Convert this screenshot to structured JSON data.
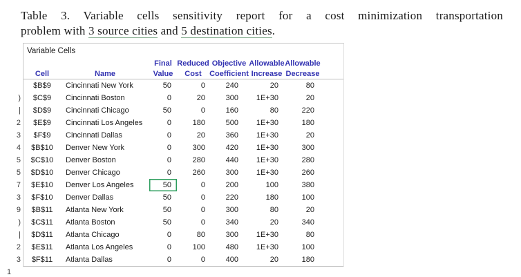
{
  "caption": {
    "line1": "Table 3. Variable cells sensitivity report for a cost minimization transportation",
    "line2": {
      "pre": "problem with ",
      "underlined1": "3 source cities",
      "mid": " and ",
      "underlined2": "5 destination cities",
      "end": "."
    }
  },
  "spreadsheet": {
    "section_label": "Variable Cells",
    "headers": {
      "line1": [
        "",
        "",
        "Final",
        "Reduced",
        "Objective",
        "Allowable",
        "Allowable"
      ],
      "line2": [
        "Cell",
        "Name",
        "Value",
        "Cost",
        "Coefficient",
        "Increase",
        "Decrease"
      ]
    },
    "rows": [
      {
        "cell": "$B$9",
        "name": "Cincinnati New York",
        "final_value": "50",
        "reduced_cost": "0",
        "objective_coefficient": "240",
        "allowable_increase": "20",
        "allowable_decrease": "80"
      },
      {
        "cell": "$C$9",
        "name": "Cincinnati Boston",
        "final_value": "0",
        "reduced_cost": "20",
        "objective_coefficient": "300",
        "allowable_increase": "1E+30",
        "allowable_decrease": "20"
      },
      {
        "cell": "$D$9",
        "name": "Cincinnati Chicago",
        "final_value": "50",
        "reduced_cost": "0",
        "objective_coefficient": "160",
        "allowable_increase": "80",
        "allowable_decrease": "220"
      },
      {
        "cell": "$E$9",
        "name": "Cincinnati Los Angeles",
        "final_value": "0",
        "reduced_cost": "180",
        "objective_coefficient": "500",
        "allowable_increase": "1E+30",
        "allowable_decrease": "180"
      },
      {
        "cell": "$F$9",
        "name": "Cincinnati Dallas",
        "final_value": "0",
        "reduced_cost": "20",
        "objective_coefficient": "360",
        "allowable_increase": "1E+30",
        "allowable_decrease": "20"
      },
      {
        "cell": "$B$10",
        "name": "Denver New York",
        "final_value": "0",
        "reduced_cost": "300",
        "objective_coefficient": "420",
        "allowable_increase": "1E+30",
        "allowable_decrease": "300"
      },
      {
        "cell": "$C$10",
        "name": "Denver Boston",
        "final_value": "0",
        "reduced_cost": "280",
        "objective_coefficient": "440",
        "allowable_increase": "1E+30",
        "allowable_decrease": "280"
      },
      {
        "cell": "$D$10",
        "name": "Denver Chicago",
        "final_value": "0",
        "reduced_cost": "260",
        "objective_coefficient": "300",
        "allowable_increase": "1E+30",
        "allowable_decrease": "260"
      },
      {
        "cell": "$E$10",
        "name": "Denver Los Angeles",
        "final_value": "50",
        "reduced_cost": "0",
        "objective_coefficient": "200",
        "allowable_increase": "100",
        "allowable_decrease": "380"
      },
      {
        "cell": "$F$10",
        "name": "Denver Dallas",
        "final_value": "50",
        "reduced_cost": "0",
        "objective_coefficient": "220",
        "allowable_increase": "180",
        "allowable_decrease": "100"
      },
      {
        "cell": "$B$11",
        "name": "Atlanta New York",
        "final_value": "50",
        "reduced_cost": "0",
        "objective_coefficient": "300",
        "allowable_increase": "80",
        "allowable_decrease": "20"
      },
      {
        "cell": "$C$11",
        "name": "Atlanta Boston",
        "final_value": "50",
        "reduced_cost": "0",
        "objective_coefficient": "340",
        "allowable_increase": "20",
        "allowable_decrease": "340"
      },
      {
        "cell": "$D$11",
        "name": "Atlanta Chicago",
        "final_value": "0",
        "reduced_cost": "80",
        "objective_coefficient": "300",
        "allowable_increase": "1E+30",
        "allowable_decrease": "80"
      },
      {
        "cell": "$E$11",
        "name": "Atlanta Los Angeles",
        "final_value": "0",
        "reduced_cost": "100",
        "objective_coefficient": "480",
        "allowable_increase": "1E+30",
        "allowable_decrease": "100"
      },
      {
        "cell": "$F$11",
        "name": "Atlanta Dallas",
        "final_value": "0",
        "reduced_cost": "0",
        "objective_coefficient": "400",
        "allowable_increase": "20",
        "allowable_decrease": "180"
      }
    ],
    "selection": {
      "row": 8,
      "field": "final_value"
    },
    "row_gutter_fragments": [
      "",
      ")",
      "|",
      "2",
      "3",
      "4",
      "5",
      "5",
      "7",
      "3",
      "9",
      ")",
      "|",
      "2",
      "3"
    ],
    "gutter_bottom_fragment": "1",
    "colors": {
      "header_text": "#3434b2",
      "selection_border": "#2e9e5e",
      "grid_line": "#c6c6c6",
      "body_text": "#1a1a1a"
    }
  }
}
